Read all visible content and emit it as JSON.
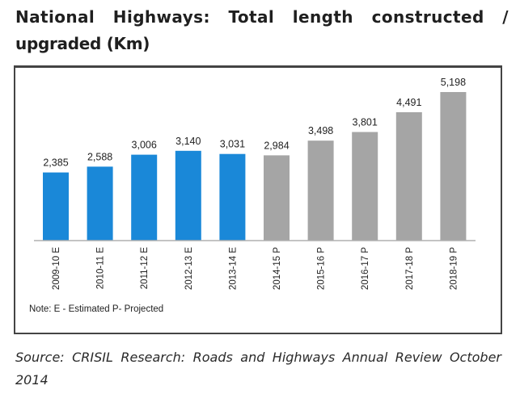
{
  "title": {
    "line1": "National Highways: Total length constructed /",
    "line2": "upgraded (Km)"
  },
  "source": {
    "line1": "Source: CRISIL Research: Roads and Highways Annual Review October",
    "line2": "2014"
  },
  "chart_data": {
    "type": "bar",
    "title": "National Highways: Total length constructed / upgraded (Km)",
    "xlabel": "",
    "ylabel": "",
    "ylim": [
      0,
      5600
    ],
    "grid": false,
    "legend": "none",
    "categories": [
      "2009-10 E",
      "2010-11 E",
      "2011-12 E",
      "2012-13 E",
      "2013-14 E",
      "2014-15 P",
      "2015-16 P",
      "2016-17 P",
      "2017-18 P",
      "2018-19 P"
    ],
    "values": [
      2385,
      2588,
      3006,
      3140,
      3031,
      2984,
      3498,
      3801,
      4491,
      5198
    ],
    "value_labels": [
      "2,385",
      "2,588",
      "3,006",
      "3,140",
      "3,031",
      "2,984",
      "3,498",
      "3,801",
      "4,491",
      "5,198"
    ],
    "bar_types": [
      "E",
      "E",
      "E",
      "E",
      "E",
      "P",
      "P",
      "P",
      "P",
      "P"
    ],
    "colors": {
      "E": "#1a88d8",
      "P": "#a5a5a5"
    },
    "annotation": "Note: E - Estimated   P- Projected"
  }
}
